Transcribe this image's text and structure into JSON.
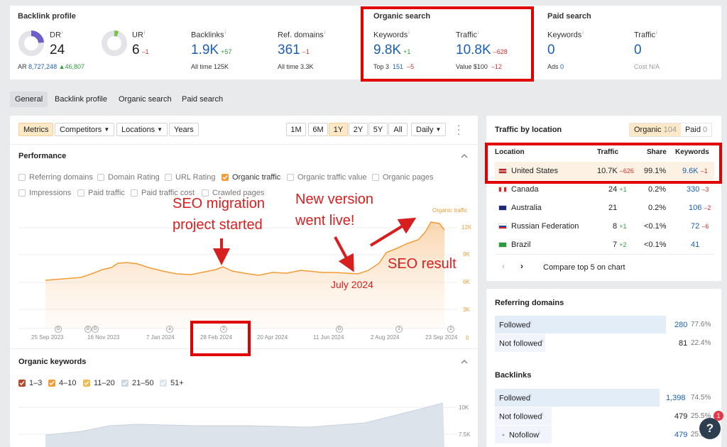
{
  "top": {
    "backlink": {
      "title": "Backlink profile",
      "dr_label": "DR",
      "dr_value": "24",
      "ur_label": "UR",
      "ur_value": "6",
      "ur_delta": "–1",
      "ar_label": "AR",
      "ar_value": "8,727,248",
      "ar_delta": "▲46,807",
      "backlinks_label": "Backlinks",
      "backlinks_value": "1.9K",
      "backlinks_delta": "+57",
      "backlinks_sub": "All time 125K",
      "refdomains_label": "Ref. domains",
      "refdomains_value": "361",
      "refdomains_delta": "–1",
      "refdomains_sub": "All time 3.3K"
    },
    "organic": {
      "title": "Organic search",
      "kw_label": "Keywords",
      "kw_value": "9.8K",
      "kw_delta": "+1",
      "top3_label": "Top 3",
      "top3_value": "151",
      "top3_delta": "–5",
      "traffic_label": "Traffic",
      "traffic_value": "10.8K",
      "traffic_delta": "–628",
      "value_label": "Value",
      "value_value": "$100",
      "value_delta": "–12"
    },
    "paid": {
      "title": "Paid search",
      "kw_label": "Keywords",
      "kw_value": "0",
      "ads_label": "Ads",
      "ads_value": "0",
      "traffic_label": "Traffic",
      "traffic_value": "0",
      "cost_label": "Cost",
      "cost_value": "N/A"
    }
  },
  "tabs": [
    "General",
    "Backlink profile",
    "Organic search",
    "Paid search"
  ],
  "toolbar": {
    "metrics": "Metrics",
    "competitors": "Competitors",
    "locations": "Locations",
    "years": "Years",
    "ranges": [
      "1M",
      "6M",
      "1Y",
      "2Y",
      "5Y",
      "All"
    ],
    "daily": "Daily"
  },
  "performance": {
    "title": "Performance",
    "checks": [
      "Referring domains",
      "Domain Rating",
      "URL Rating",
      "Organic traffic",
      "Organic traffic value",
      "Organic pages",
      "Impressions",
      "Paid traffic",
      "Paid traffic cost",
      "Crawled pages"
    ],
    "series_label": "Organic traffic",
    "yticks": [
      "12K",
      "9K",
      "6K",
      "3K",
      "0"
    ],
    "xticks": [
      "25 Sep 2023",
      "16 Nov 2023",
      "7 Jan 2024",
      "28 Feb 2024",
      "20 Apr 2024",
      "11 Jun 2024",
      "2 Aug 2024",
      "23 Sep 2024"
    ],
    "markers": [
      "G",
      "G",
      "G",
      "a",
      "2",
      "G",
      "2",
      "2"
    ]
  },
  "annotations": {
    "seo_migration": "SEO migration",
    "project_started": "project started",
    "new_version": "New version",
    "went_live": "went live!",
    "july": "July 2024",
    "seo_result": "SEO result"
  },
  "organic_keywords": {
    "title": "Organic keywords",
    "checks": [
      "1–3",
      "4–10",
      "11–20",
      "21–50",
      "51+"
    ],
    "yticks": [
      "10K",
      "7.5K"
    ]
  },
  "traffic_location": {
    "title": "Traffic by location",
    "organic_tab": "Organic",
    "organic_count": "104",
    "paid_tab": "Paid",
    "paid_count": "0",
    "headers": [
      "Location",
      "Traffic",
      "Share",
      "Keywords"
    ],
    "rows": [
      {
        "country": "United States",
        "traffic": "10.7K",
        "delta": "–626",
        "share": "99.1%",
        "kw": "9.6K",
        "kwdelta": "–1"
      },
      {
        "country": "Canada",
        "traffic": "24",
        "delta": "+1",
        "share": "0.2%",
        "kw": "330",
        "kwdelta": "–3"
      },
      {
        "country": "Australia",
        "traffic": "21",
        "delta": "",
        "share": "0.2%",
        "kw": "106",
        "kwdelta": "–2"
      },
      {
        "country": "Russian Federation",
        "traffic": "8",
        "delta": "+1",
        "share": "<0.1%",
        "kw": "72",
        "kwdelta": "–6"
      },
      {
        "country": "Brazil",
        "traffic": "7",
        "delta": "+2",
        "share": "<0.1%",
        "kw": "41",
        "kwdelta": ""
      }
    ],
    "compare": "Compare top 5 on chart"
  },
  "referring_domains": {
    "title": "Referring domains",
    "rows": [
      {
        "label": "Followed",
        "value": "280",
        "pct": "77.6%",
        "share": 0.776
      },
      {
        "label": "Not followed",
        "value": "81",
        "pct": "22.4%",
        "share": 0.224
      }
    ]
  },
  "backlinks": {
    "title": "Backlinks",
    "rows": [
      {
        "label": "Followed",
        "value": "1,398",
        "pct": "74.5%",
        "share": 0.745
      },
      {
        "label": "Not followed",
        "value": "479",
        "pct": "25.5%",
        "share": 0.255
      },
      {
        "label": "Nofollow",
        "value": "479",
        "pct": "25.5%",
        "share": 0.255
      }
    ]
  },
  "help": {
    "badge": "1",
    "label": "?"
  },
  "colors": {
    "accent": "#f39c35",
    "link": "#1a5fb4",
    "positive": "#2a9d3a",
    "negative": "#d0312d",
    "highlight": "#e10000"
  }
}
